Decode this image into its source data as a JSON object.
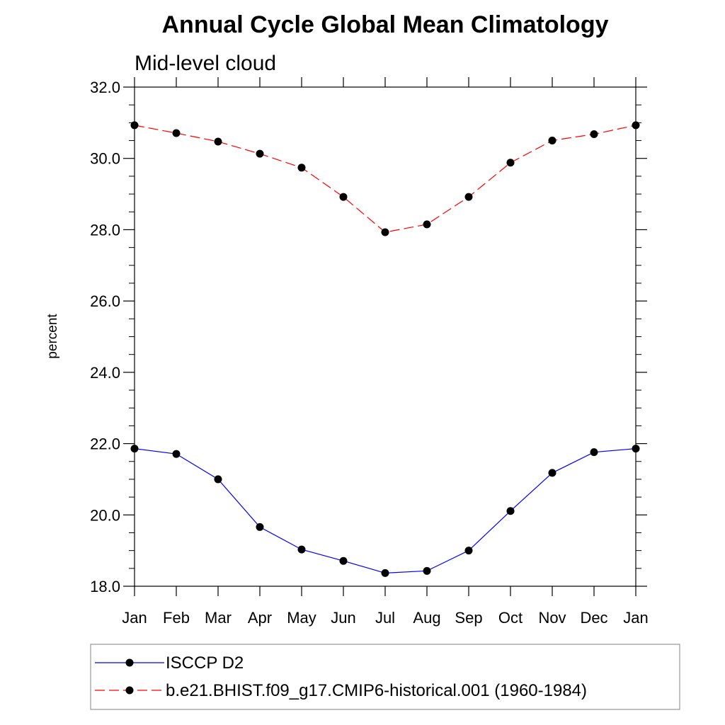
{
  "chart_data": {
    "type": "line",
    "title": "Annual Cycle Global Mean Climatology",
    "subtitle": "Mid-level cloud",
    "xlabel": "",
    "ylabel": "percent",
    "categories": [
      "Jan",
      "Feb",
      "Mar",
      "Apr",
      "May",
      "Jun",
      "Jul",
      "Aug",
      "Sep",
      "Oct",
      "Nov",
      "Dec",
      "Jan"
    ],
    "ylim": [
      18.0,
      32.0
    ],
    "yticks": [
      "18.0",
      "20.0",
      "22.0",
      "24.0",
      "26.0",
      "28.0",
      "30.0",
      "32.0"
    ],
    "ytick_values": [
      18,
      20,
      22,
      24,
      26,
      28,
      30,
      32
    ],
    "grid": false,
    "legend_position": "bottom",
    "series": [
      {
        "name": "ISCCP D2",
        "color": "#0000ff",
        "dash": "solid",
        "values": [
          21.86,
          21.71,
          21.0,
          19.66,
          19.03,
          18.71,
          18.37,
          18.43,
          19.0,
          20.11,
          21.18,
          21.76,
          21.86
        ]
      },
      {
        "name": "b.e21.BHIST.f09_g17.CMIP6-historical.001 (1960-1984)",
        "color": "#ff0000",
        "dash": "dashed",
        "values": [
          30.93,
          30.71,
          30.47,
          30.13,
          29.74,
          28.92,
          27.93,
          28.15,
          28.92,
          29.88,
          30.5,
          30.68,
          30.93
        ]
      }
    ]
  }
}
